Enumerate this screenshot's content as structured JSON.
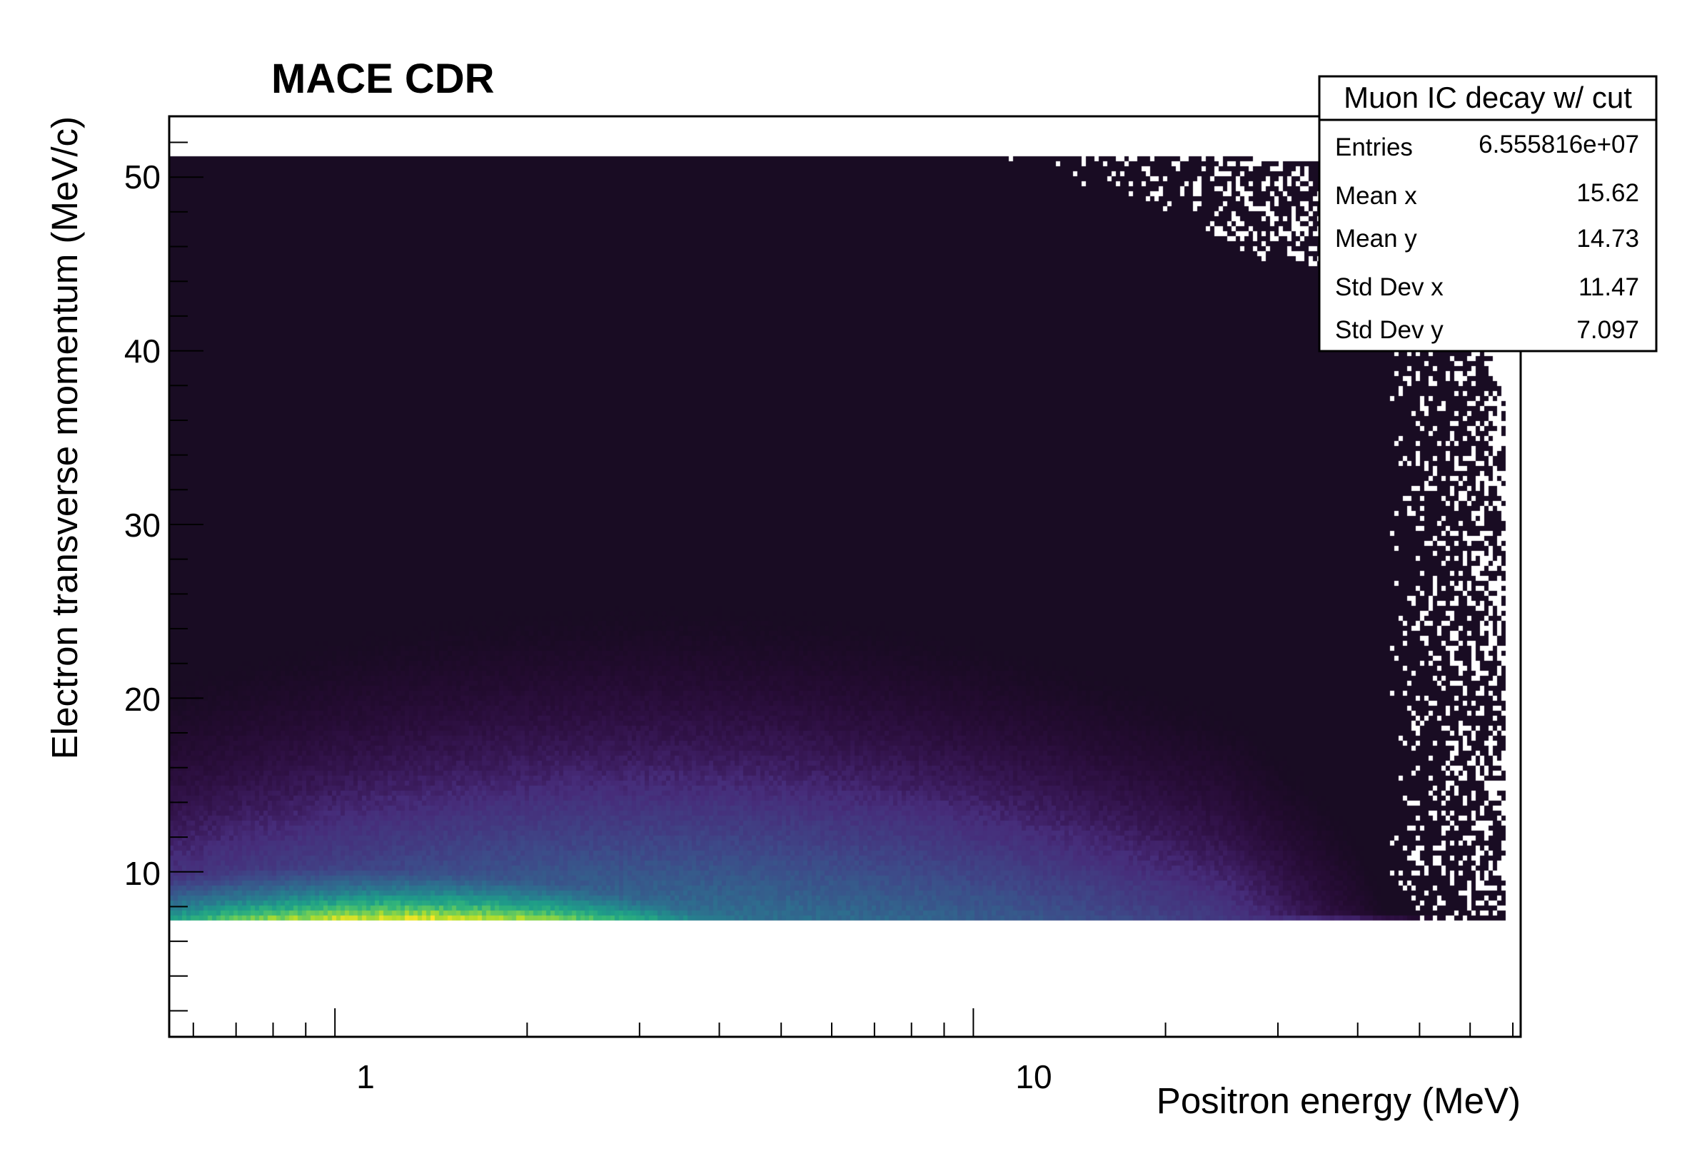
{
  "chart_data": {
    "type": "heatmap",
    "title": "MACE CDR",
    "xlabel": "Positron energy (MeV)",
    "ylabel": "Electron transverse momentum (MeV/c)",
    "x_scale": "log",
    "xlim": [
      0.55,
      72
    ],
    "ylim": [
      0.5,
      53.5
    ],
    "x_tick_labels": [
      "1",
      "10"
    ],
    "y_tick_labels": [
      "10",
      "20",
      "30",
      "40",
      "50"
    ],
    "colormap": "viridis",
    "grid": false,
    "legend": "none",
    "stats": {
      "title": "Muon IC decay w/ cut",
      "rows": [
        {
          "label": "Entries",
          "value": "6.555816e+07"
        },
        {
          "label": "Mean x",
          "value": "15.62"
        },
        {
          "label": "Mean y",
          "value": "14.73"
        },
        {
          "label": "Std Dev x",
          "value": "11.47"
        },
        {
          "label": "Std Dev y",
          "value": "7.097"
        }
      ]
    },
    "distribution": {
      "x_range": [
        0.55,
        68
      ],
      "y_range": [
        7.2,
        51.3
      ],
      "peak": {
        "x": 1.3,
        "y": 7.8
      }
    }
  }
}
